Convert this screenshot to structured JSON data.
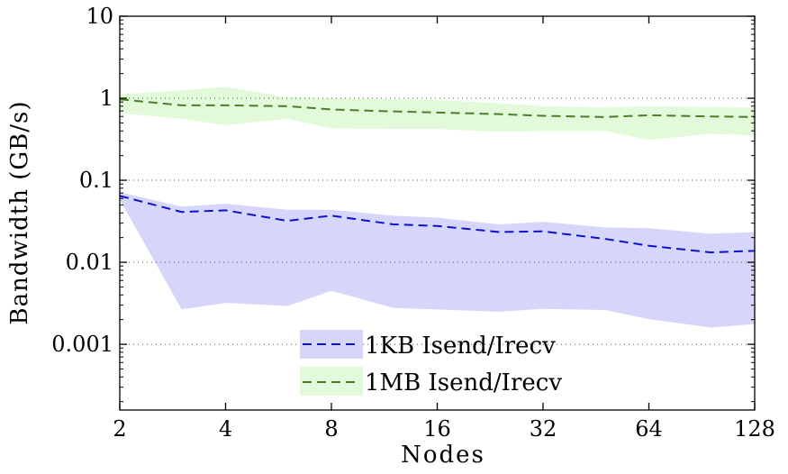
{
  "chart_data": {
    "type": "line",
    "title": "",
    "xlabel": "Nodes",
    "ylabel": "Bandwidth (GB/s)",
    "xscale": "log2",
    "yscale": "log10",
    "xlim": [
      2,
      128
    ],
    "ylim": [
      0.000158,
      10
    ],
    "x": [
      2,
      3,
      4,
      6,
      8,
      12,
      16,
      24,
      32,
      48,
      64,
      96,
      128
    ],
    "xticks": [
      2,
      4,
      8,
      16,
      32,
      64,
      128
    ],
    "xtick_labels": [
      "2",
      "4",
      "8",
      "16",
      "32",
      "64",
      "128"
    ],
    "yticks": [
      10,
      1,
      0.1,
      0.01,
      0.001
    ],
    "ytick_labels": [
      "10",
      "1",
      "0.1",
      "0.01",
      "0.001"
    ],
    "grid": "dotted horizontal at decades",
    "legend_position": "bottom-center",
    "series": [
      {
        "name": "1KB Isend/Irecv",
        "line_color": "#1010d0",
        "band_color": "#d6d6fa",
        "values": [
          0.0645,
          0.041,
          0.043,
          0.032,
          0.037,
          0.029,
          0.0277,
          0.0234,
          0.0238,
          0.0193,
          0.0159,
          0.0132,
          0.0138
        ],
        "upper": [
          0.0715,
          0.0477,
          0.0518,
          0.0437,
          0.0437,
          0.037,
          0.035,
          0.029,
          0.0312,
          0.0266,
          0.026,
          0.0223,
          0.0234
        ],
        "lower": [
          0.058,
          0.00266,
          0.0032,
          0.00294,
          0.00449,
          0.00277,
          0.00266,
          0.0025,
          0.0027,
          0.00262,
          0.00203,
          0.0016,
          0.00177
        ]
      },
      {
        "name": "1MB Isend/Irecv",
        "line_color": "#4a7f2a",
        "band_color": "#e2fada",
        "values": [
          0.97,
          0.82,
          0.82,
          0.8,
          0.73,
          0.69,
          0.67,
          0.64,
          0.61,
          0.59,
          0.62,
          0.6,
          0.59
        ],
        "upper": [
          1.12,
          1.25,
          1.38,
          1.03,
          1.0,
          0.97,
          0.95,
          0.87,
          0.8,
          0.77,
          0.8,
          0.78,
          0.77
        ],
        "lower": [
          0.66,
          0.56,
          0.47,
          0.56,
          0.43,
          0.42,
          0.42,
          0.39,
          0.4,
          0.4,
          0.31,
          0.37,
          0.35
        ]
      }
    ]
  }
}
